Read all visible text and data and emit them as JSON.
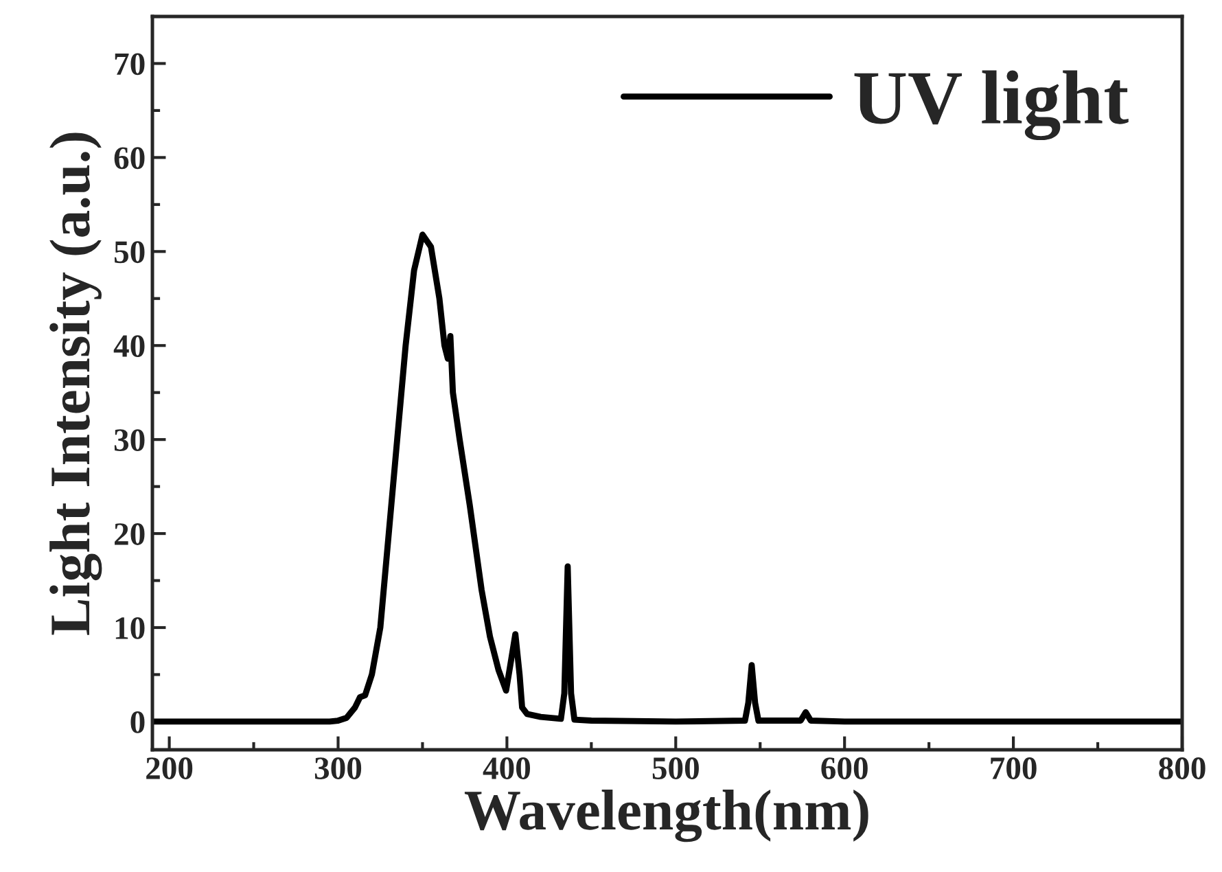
{
  "chart_data": {
    "type": "line",
    "xlabel": "Wavelength(nm)",
    "ylabel": "Light Intensity (a.u.)",
    "xlim": [
      190,
      800
    ],
    "ylim": [
      -3,
      75
    ],
    "xticks": [
      200,
      300,
      400,
      500,
      600,
      700,
      800
    ],
    "yticks": [
      0,
      10,
      20,
      30,
      40,
      50,
      60,
      70
    ],
    "grid": false,
    "legend": "top right",
    "line_style": "solid",
    "marker": "none",
    "series": [
      {
        "name": "UV light",
        "color": "#000000",
        "x": [
          190,
          250,
          295,
          300,
          305,
          310,
          313,
          316,
          320,
          325,
          330,
          335,
          340,
          345,
          350,
          355,
          360,
          363,
          365,
          366.5,
          368,
          372,
          378,
          385,
          390,
          395,
          399.5,
          402,
          405,
          407.5,
          409,
          412,
          420,
          432,
          434,
          436,
          438,
          440,
          450,
          500,
          541,
          543,
          545,
          547,
          549,
          574,
          577,
          580,
          600,
          700,
          800
        ],
        "values": [
          0,
          0,
          0,
          0.1,
          0.4,
          1.5,
          2.6,
          2.8,
          5,
          10,
          20,
          30,
          40,
          48,
          51.8,
          50.5,
          45,
          40,
          38.6,
          41,
          35,
          30,
          23,
          14,
          9,
          5.5,
          3.3,
          6,
          9.3,
          5,
          1.5,
          0.8,
          0.5,
          0.3,
          3,
          16.5,
          3,
          0.2,
          0.1,
          0,
          0.1,
          2,
          6,
          2,
          0.1,
          0.1,
          1,
          0.1,
          0,
          0,
          0
        ]
      }
    ]
  }
}
